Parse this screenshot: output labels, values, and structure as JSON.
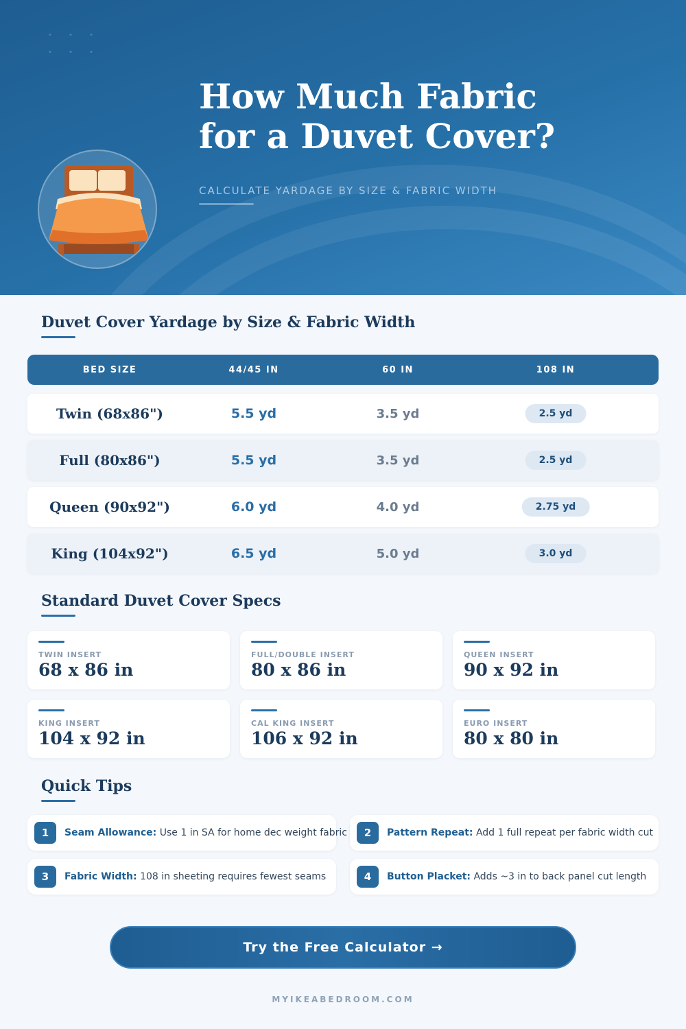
{
  "hero": {
    "title_line1": "How Much Fabric",
    "title_line2": "for a Duvet Cover?",
    "subtitle": "CALCULATE YARDAGE BY SIZE & FABRIC WIDTH",
    "illustration": "bed-icon"
  },
  "yardage": {
    "title": "Duvet Cover Yardage by Size & Fabric Width",
    "headers": [
      "BED SIZE",
      "44/45 IN",
      "60 IN",
      "108 IN"
    ],
    "rows": [
      {
        "size": "Twin (68x86\")",
        "w44": "5.5 yd",
        "w60": "3.5 yd",
        "w108": "2.5 yd"
      },
      {
        "size": "Full (80x86\")",
        "w44": "5.5 yd",
        "w60": "3.5 yd",
        "w108": "2.5 yd"
      },
      {
        "size": "Queen (90x92\")",
        "w44": "6.0 yd",
        "w60": "4.0 yd",
        "w108": "2.75 yd"
      },
      {
        "size": "King (104x92\")",
        "w44": "6.5 yd",
        "w60": "5.0 yd",
        "w108": "3.0 yd"
      }
    ]
  },
  "specs": {
    "title": "Standard Duvet Cover Specs",
    "cards": [
      {
        "label": "TWIN INSERT",
        "value": "68 x 86 in"
      },
      {
        "label": "FULL/DOUBLE INSERT",
        "value": "80 x 86 in"
      },
      {
        "label": "QUEEN INSERT",
        "value": "90 x 92 in"
      },
      {
        "label": "KING INSERT",
        "value": "104 x 92 in"
      },
      {
        "label": "CAL KING INSERT",
        "value": "106 x 92 in"
      },
      {
        "label": "EURO INSERT",
        "value": "80 x 80 in"
      }
    ]
  },
  "tips": {
    "title": "Quick Tips",
    "items": [
      {
        "num": "1",
        "label": "Seam Allowance:",
        "text": " Use 1 in SA for home dec weight fabric"
      },
      {
        "num": "2",
        "label": "Pattern Repeat:",
        "text": " Add 1 full repeat per fabric width cut"
      },
      {
        "num": "3",
        "label": "Fabric Width:",
        "text": " 108 in sheeting requires fewest seams"
      },
      {
        "num": "4",
        "label": "Button Placket:",
        "text": " Adds ~3 in to back panel cut length"
      }
    ]
  },
  "cta": {
    "label": "Try the Free Calculator →"
  },
  "footer": {
    "site": "MYIKEABEDROOM.COM"
  },
  "colors": {
    "primary": "#2a6b9e",
    "accent": "#2a6ea6",
    "heading": "#1c3b5c",
    "duvet": "#f08a3c"
  }
}
